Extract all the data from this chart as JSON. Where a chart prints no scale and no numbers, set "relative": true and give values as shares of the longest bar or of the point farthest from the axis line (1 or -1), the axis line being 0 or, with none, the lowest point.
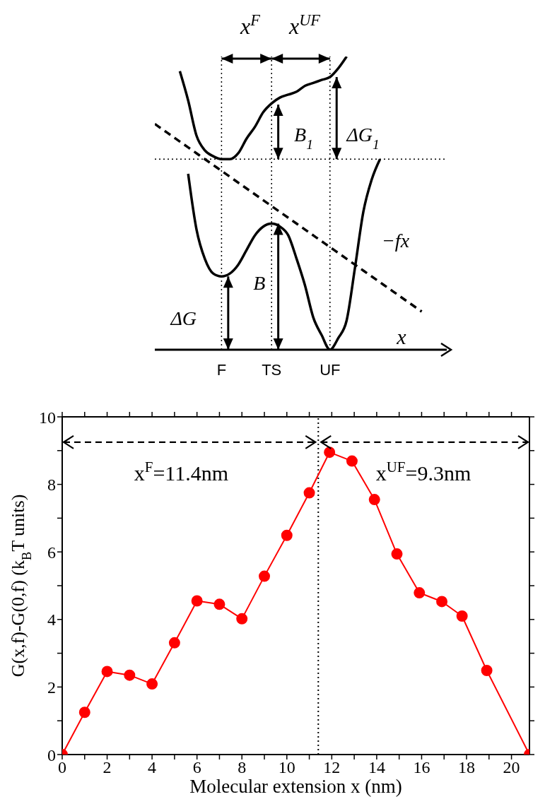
{
  "chart_data": [
    {
      "type": "line",
      "relative": true,
      "xlabel": "x",
      "marker": "none",
      "categories": [
        null,
        null,
        null,
        null,
        null,
        null,
        null,
        null,
        "F",
        null,
        null,
        null,
        null,
        null,
        "TS",
        null,
        null,
        null,
        null,
        null,
        null,
        "UF",
        null,
        null,
        null,
        null,
        null,
        null,
        null,
        null,
        null,
        null,
        null,
        null,
        null,
        null
      ],
      "series": [
        {
          "color": "#000000",
          "values": [
            null,
            null,
            null,
            0.95,
            0.85,
            0.73,
            0.68,
            0.66,
            0.65,
            0.65,
            0.67,
            0.72,
            0.76,
            0.81,
            0.84,
            0.86,
            0.87,
            0.88,
            0.9,
            0.91,
            0.92,
            0.93,
            0.96,
            1.0,
            null,
            null,
            null,
            null,
            null,
            null,
            null,
            null,
            null,
            null,
            null,
            null
          ]
        },
        {
          "color": "#000000",
          "values": [
            null,
            null,
            null,
            null,
            0.6,
            0.41,
            0.31,
            0.26,
            0.25,
            0.26,
            0.29,
            0.34,
            0.39,
            0.42,
            0.43,
            0.42,
            0.39,
            0.31,
            0.22,
            0.11,
            0.05,
            0,
            0.04,
            0.1,
            0.28,
            0.47,
            0.58,
            0.65,
            null,
            null,
            null,
            null,
            null,
            null,
            null,
            null
          ]
        },
        {
          "color": "#000000",
          "line_style": "dashed",
          "values": [
            0.77,
            0.75,
            0.73,
            0.71,
            0.69,
            0.67,
            0.65,
            0.63,
            0.61,
            0.59,
            0.57,
            0.55,
            0.53,
            0.51,
            0.49,
            0.47,
            0.45,
            0.43,
            0.41,
            0.39,
            0.37,
            0.35,
            0.33,
            0.31,
            0.29,
            0.27,
            0.25,
            0.23,
            0.21,
            0.19,
            0.17,
            0.15,
            0.13,
            null,
            null,
            null
          ]
        }
      ],
      "ref_lines": [
        {
          "axis": "y",
          "value": 0.65,
          "line_style": "dotted",
          "color": "#000000"
        },
        {
          "axis": "x",
          "value": "F",
          "line_style": "dotted",
          "color": "#000000"
        },
        {
          "axis": "x",
          "value": "TS",
          "line_style": "dotted",
          "color": "#000000"
        },
        {
          "axis": "x",
          "value": "UF",
          "line_style": "dotted",
          "color": "#000000"
        }
      ],
      "annotations": [
        "x$^{F}$",
        "x$^{UF}$",
        "B$_{1}$",
        "ΔG$_{1}$",
        "−fx",
        "ΔG",
        "B"
      ]
    },
    {
      "type": "line",
      "xlabel": "Molecular extension x (nm)",
      "ylabel": "G(x,f)-G(0,f)  (k$_{B}$T units)",
      "marker": "circle",
      "x": [
        0,
        1,
        2,
        3,
        4,
        5,
        6,
        7,
        8,
        9,
        10,
        11,
        11.9,
        12.9,
        13.9,
        14.9,
        15.9,
        16.9,
        17.8,
        18.9,
        20.8
      ],
      "series": [
        {
          "color": "#ff0000",
          "values": [
            0,
            1.25,
            2.46,
            2.35,
            2.09,
            3.31,
            4.55,
            4.45,
            4.02,
            5.28,
            6.49,
            7.75,
            8.95,
            8.69,
            7.55,
            5.94,
            4.79,
            4.53,
            4.1,
            2.49,
            0
          ]
        }
      ],
      "xlim": [
        0,
        20.8
      ],
      "xticks": [
        0,
        {
          "value": 1,
          "label": null
        },
        2,
        {
          "value": 3,
          "label": null
        },
        4,
        {
          "value": 5,
          "label": null
        },
        6,
        {
          "value": 7,
          "label": null
        },
        8,
        {
          "value": 9,
          "label": null
        },
        10,
        {
          "value": 11,
          "label": null
        },
        12,
        {
          "value": 13,
          "label": null
        },
        14,
        {
          "value": 15,
          "label": null
        },
        16,
        {
          "value": 17,
          "label": null
        },
        18,
        {
          "value": 19,
          "label": null
        },
        20
      ],
      "ylim": [
        0,
        10
      ],
      "yticks": [
        0,
        {
          "value": 1,
          "label": null
        },
        2,
        {
          "value": 3,
          "label": null
        },
        4,
        {
          "value": 5,
          "label": null
        },
        6,
        {
          "value": 7,
          "label": null
        },
        8,
        {
          "value": 9,
          "label": null
        },
        10
      ],
      "ref_lines": [
        {
          "axis": "x",
          "value": 11.4,
          "line_style": "dotted",
          "color": "#000000"
        }
      ],
      "annotations": [
        "x$^{F}$=11.4nm",
        "x$^{UF}$=9.3nm"
      ]
    }
  ]
}
